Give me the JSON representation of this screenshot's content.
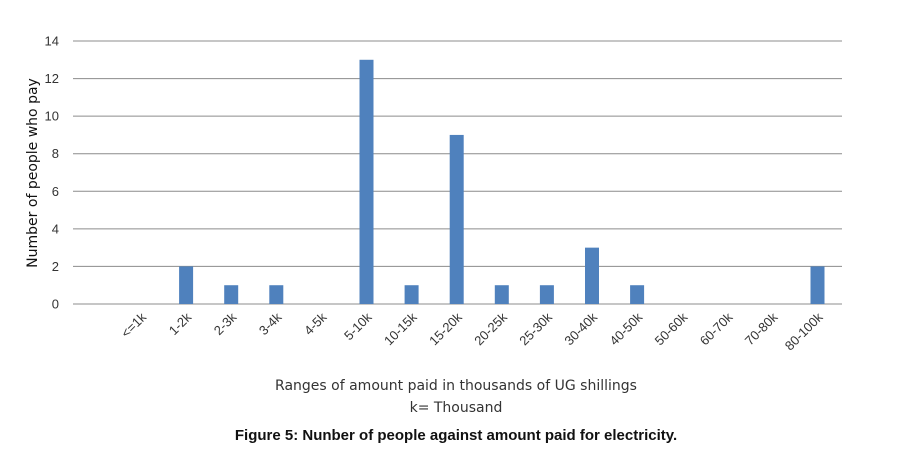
{
  "chart_data": {
    "type": "bar",
    "categories": [
      "<=1k",
      "1-2k",
      "2-3k",
      "3-4k",
      "4-5k",
      "5-10k",
      "10-15k",
      "15-20k",
      "20-25k",
      "25-30k",
      "30-40k",
      "40-50k",
      "50-60k",
      "60-70k",
      "70-80k",
      "80-100k"
    ],
    "values": [
      0,
      2,
      1,
      1,
      0,
      13,
      1,
      9,
      1,
      1,
      3,
      1,
      0,
      0,
      0,
      2
    ],
    "ylabel": "Number of people who pay",
    "xlabel": "Ranges of amount paid in thousands of UG shillings",
    "xlabel_note": "k= Thousand",
    "caption": "Figure 5: Nunber of people against amount paid for electricity.",
    "ylim": [
      0,
      14
    ],
    "yticks": [
      0,
      2,
      4,
      6,
      8,
      10,
      12,
      14
    ],
    "grid": true,
    "bar_color": "#4f81bd",
    "grid_color": "#8c8c8c"
  }
}
